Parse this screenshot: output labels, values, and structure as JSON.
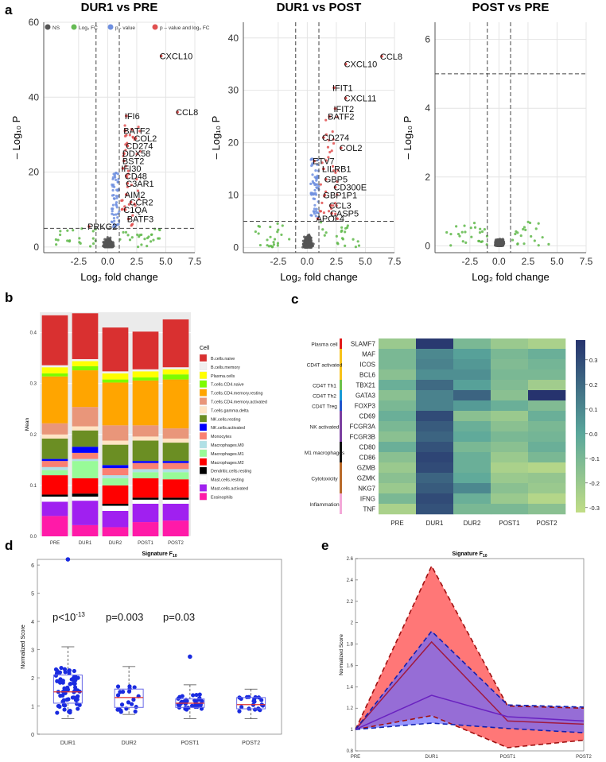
{
  "panels": {
    "a": "a",
    "b": "b",
    "c": "c",
    "d": "d",
    "e": "e"
  },
  "chart_data": [
    {
      "id": "a1",
      "type": "scatter",
      "title": "DUR1 vs PRE",
      "xlabel": "Log₂ fold change",
      "ylabel": "– Log₁₀ P",
      "xlim": [
        -5.5,
        7.5
      ],
      "ylim": [
        -1.5,
        60
      ],
      "xticks": [
        "-2.5",
        "0.0",
        "2.5",
        "5.0",
        "7.5"
      ],
      "xtick_values": [
        -2.5,
        0,
        2.5,
        5,
        7.5
      ],
      "yticks": [
        "0",
        "20",
        "40",
        "60"
      ],
      "ytick_values": [
        0,
        20,
        40,
        60
      ],
      "legend": [
        {
          "label": "NS",
          "color": "#555555"
        },
        {
          "label": "Log₂ FC",
          "color": "#66bb55"
        },
        {
          "label": "p - value",
          "color": "#6f8fdf"
        },
        {
          "label": "p – value and log₂ FC",
          "color": "#e05050"
        }
      ],
      "thresholds": {
        "fc": 1,
        "p": 5
      },
      "labels": [
        {
          "text": "CXCL10",
          "x": 4.6,
          "y": 51
        },
        {
          "text": "CCL8",
          "x": 6.0,
          "y": 36
        },
        {
          "text": "IFI6",
          "x": 1.6,
          "y": 35
        },
        {
          "text": "BATF2",
          "x": 1.5,
          "y": 31
        },
        {
          "text": "COL2",
          "x": 2.4,
          "y": 29
        },
        {
          "text": "CD274",
          "x": 1.7,
          "y": 27
        },
        {
          "text": "DDX58",
          "x": 1.4,
          "y": 25
        },
        {
          "text": "BST2",
          "x": 1.4,
          "y": 23
        },
        {
          "text": "IFI30",
          "x": 1.3,
          "y": 21
        },
        {
          "text": "CD48",
          "x": 1.6,
          "y": 19
        },
        {
          "text": "C3AR1",
          "x": 1.7,
          "y": 17
        },
        {
          "text": "AIM2",
          "x": 1.6,
          "y": 14
        },
        {
          "text": "CCR2",
          "x": 2.0,
          "y": 12
        },
        {
          "text": "C1QA",
          "x": 1.5,
          "y": 10
        },
        {
          "text": "BATF3",
          "x": 1.8,
          "y": 7.5
        },
        {
          "text": "PRKG2",
          "x": -1.6,
          "y": 5.5
        }
      ]
    },
    {
      "id": "a2",
      "type": "scatter",
      "title": "DUR1 vs POST",
      "xlabel": "Log₂ fold change",
      "ylabel": "– Log₁₀ P",
      "xlim": [
        -5.5,
        7.5
      ],
      "ylim": [
        -1,
        43
      ],
      "xticks": [
        "-2.5",
        "0.0",
        "2.5",
        "5.0",
        "7.5"
      ],
      "xtick_values": [
        -2.5,
        0,
        2.5,
        5,
        7.5
      ],
      "yticks": [
        "0",
        "10",
        "20",
        "30",
        "40"
      ],
      "ytick_values": [
        0,
        10,
        20,
        30,
        40
      ],
      "thresholds": {
        "fc": 1,
        "p": 5
      },
      "labels": [
        {
          "text": "CCL8",
          "x": 6.4,
          "y": 36.5
        },
        {
          "text": "CXCL10",
          "x": 3.3,
          "y": 35
        },
        {
          "text": "IFIT1",
          "x": 2.3,
          "y": 30.5
        },
        {
          "text": "CXCL11",
          "x": 3.3,
          "y": 28.5
        },
        {
          "text": "IFIT2",
          "x": 2.4,
          "y": 26.5
        },
        {
          "text": "BATF2",
          "x": 1.9,
          "y": 25
        },
        {
          "text": "CD274",
          "x": 1.4,
          "y": 21
        },
        {
          "text": "COL2",
          "x": 2.9,
          "y": 19
        },
        {
          "text": "ETV7",
          "x": 0.6,
          "y": 16.5
        },
        {
          "text": "LILRB1",
          "x": 1.4,
          "y": 15
        },
        {
          "text": "GBP5",
          "x": 1.6,
          "y": 13
        },
        {
          "text": "CD300E",
          "x": 2.4,
          "y": 11.5
        },
        {
          "text": "GBP1P1",
          "x": 1.5,
          "y": 10
        },
        {
          "text": "CCL3",
          "x": 2.0,
          "y": 8
        },
        {
          "text": "CASP5",
          "x": 2.1,
          "y": 6.5
        },
        {
          "text": "APOL4",
          "x": 0.9,
          "y": 5.5
        }
      ]
    },
    {
      "id": "a3",
      "type": "scatter",
      "title": "POST vs PRE",
      "xlabel": "Log₂ fold change",
      "ylabel": "– Log₁₀ P",
      "xlim": [
        -5.5,
        7.5
      ],
      "ylim": [
        -0.2,
        6.5
      ],
      "xticks": [
        "-2.5",
        "0.0",
        "2.5",
        "5.0",
        "7.5"
      ],
      "xtick_values": [
        -2.5,
        0,
        2.5,
        5,
        7.5
      ],
      "yticks": [
        "0",
        "2",
        "4",
        "6"
      ],
      "ytick_values": [
        0,
        2,
        4,
        6
      ],
      "thresholds": {
        "fc": 1,
        "p": 5
      },
      "labels": []
    },
    {
      "id": "b",
      "type": "bar",
      "stacked": true,
      "ylabel": "Mean",
      "categories": [
        "PRE",
        "DUR1",
        "DUR2",
        "POST1",
        "POST2"
      ],
      "ylim": [
        0,
        0.44
      ],
      "yticks": [
        "0.0",
        "0.1",
        "0.2",
        "0.3",
        "0.4"
      ],
      "ytick_values": [
        0,
        0.1,
        0.2,
        0.3,
        0.4
      ],
      "legend_title": "Cell",
      "series": [
        {
          "name": "Eosinophils",
          "color": "#ff1aa8",
          "values": [
            0.04,
            0.022,
            0.018,
            0.028,
            0.031
          ]
        },
        {
          "name": "Mast.cells.activated",
          "color": "#a020f0",
          "values": [
            0.028,
            0.048,
            0.032,
            0.036,
            0.033
          ]
        },
        {
          "name": "Mast.cells.resting",
          "color": "#ffffff",
          "values": [
            0.01,
            0.008,
            0.01,
            0.008,
            0.008
          ]
        },
        {
          "name": "Dendritic.cells.resting",
          "color": "#000000",
          "values": [
            0.004,
            0.006,
            0.004,
            0.004,
            0.004
          ]
        },
        {
          "name": "Macrophages.M2",
          "color": "#ff0000",
          "values": [
            0.038,
            0.03,
            0.036,
            0.038,
            0.036
          ]
        },
        {
          "name": "Macrophages.M1",
          "color": "#98fb98",
          "values": [
            0.01,
            0.034,
            0.014,
            0.012,
            0.014
          ]
        },
        {
          "name": "Macrophages.M0",
          "color": "#b0e0e6",
          "values": [
            0.006,
            0.004,
            0.006,
            0.006,
            0.006
          ]
        },
        {
          "name": "Monocytes",
          "color": "#fa8072",
          "values": [
            0.012,
            0.012,
            0.014,
            0.012,
            0.012
          ]
        },
        {
          "name": "NK.cells.activated",
          "color": "#0000ff",
          "values": [
            0.004,
            0.012,
            0.006,
            0.004,
            0.004
          ]
        },
        {
          "name": "NK.cells.resting",
          "color": "#6b8e23",
          "values": [
            0.04,
            0.032,
            0.04,
            0.04,
            0.036
          ]
        },
        {
          "name": "T.cells.gamma.delta",
          "color": "#ffe4c4",
          "values": [
            0.008,
            0.008,
            0.008,
            0.008,
            0.008
          ]
        },
        {
          "name": "T.cells.CD4.memory.activated",
          "color": "#e9967a",
          "values": [
            0.022,
            0.038,
            0.03,
            0.022,
            0.02
          ]
        },
        {
          "name": "T.cells.CD4.memory.resting",
          "color": "#ffa500",
          "values": [
            0.092,
            0.072,
            0.084,
            0.088,
            0.096
          ]
        },
        {
          "name": "T.cells.CD4.naive",
          "color": "#7cfc00",
          "values": [
            0.006,
            0.008,
            0.006,
            0.006,
            0.01
          ]
        },
        {
          "name": "Plasma.cells",
          "color": "#ffff00",
          "values": [
            0.012,
            0.01,
            0.012,
            0.012,
            0.01
          ]
        },
        {
          "name": "B.cells.memory",
          "color": "#f0f0f0",
          "values": [
            0.004,
            0.004,
            0.004,
            0.004,
            0.004
          ]
        },
        {
          "name": "B.cells.naive",
          "color": "#d93030",
          "values": [
            0.098,
            0.09,
            0.086,
            0.074,
            0.094
          ]
        }
      ]
    },
    {
      "id": "c",
      "type": "heatmap",
      "columns": [
        "PRE",
        "DUR1",
        "DUR2",
        "POST1",
        "POST2"
      ],
      "rows": [
        "SLAMF7",
        "MAF",
        "ICOS",
        "BCL6",
        "TBX21",
        "GATA3",
        "FOXP3",
        "CD69",
        "FCGR3A",
        "FCGR3B",
        "CD80",
        "CD86",
        "GZMB",
        "GZMK",
        "NKG7",
        "IFNG",
        "TNF"
      ],
      "groups": [
        {
          "label": "Plasma cell",
          "color": "#e21a1a",
          "rows": [
            0,
            0
          ]
        },
        {
          "label": "CD4T activated",
          "color": "#f7c21a",
          "rows": [
            1,
            3
          ]
        },
        {
          "label": "CD4T Th1",
          "color": "#6cc04a",
          "rows": [
            4,
            4
          ]
        },
        {
          "label": "CD4T Th2",
          "color": "#1a9ad6",
          "rows": [
            5,
            5
          ]
        },
        {
          "label": "CD4T Treg",
          "color": "#2255cc",
          "rows": [
            6,
            6
          ]
        },
        {
          "label": "NK activated",
          "color": "#7b3fa0",
          "rows": [
            7,
            9
          ]
        },
        {
          "label": "M1 macrophages",
          "color": "#111111",
          "rows": [
            10,
            11
          ]
        },
        {
          "label": "Cytotoxicity",
          "color": "#b86a2a",
          "rows": [
            12,
            14
          ]
        },
        {
          "label": "Inflammation",
          "color": "#f3a8d8",
          "rows": [
            15,
            16
          ]
        }
      ],
      "values": [
        [
          -0.2,
          0.36,
          -0.1,
          -0.2,
          -0.25
        ],
        [
          -0.1,
          0.1,
          0.02,
          -0.1,
          -0.05
        ],
        [
          -0.1,
          0.12,
          0.05,
          -0.12,
          -0.08
        ],
        [
          -0.15,
          0.08,
          0.08,
          -0.1,
          -0.1
        ],
        [
          -0.05,
          0.2,
          0.02,
          -0.12,
          -0.22
        ],
        [
          -0.15,
          0.12,
          0.22,
          -0.15,
          0.38
        ],
        [
          -0.1,
          0.12,
          0.04,
          -0.05,
          -0.12
        ],
        [
          -0.05,
          0.3,
          -0.15,
          -0.2,
          -0.05
        ],
        [
          -0.1,
          0.25,
          -0.05,
          -0.15,
          -0.1
        ],
        [
          -0.15,
          0.22,
          -0.02,
          -0.1,
          -0.08
        ],
        [
          -0.05,
          0.28,
          -0.1,
          -0.15,
          -0.05
        ],
        [
          -0.15,
          0.32,
          -0.05,
          -0.2,
          -0.1
        ],
        [
          -0.2,
          0.3,
          -0.05,
          -0.25,
          -0.28
        ],
        [
          -0.15,
          0.22,
          -0.02,
          -0.2,
          -0.18
        ],
        [
          -0.2,
          0.25,
          0.1,
          -0.15,
          -0.2
        ],
        [
          -0.1,
          0.3,
          -0.05,
          -0.2,
          -0.28
        ],
        [
          -0.25,
          0.28,
          -0.1,
          -0.1,
          -0.15
        ]
      ],
      "colorbar": {
        "min": -0.32,
        "max": 0.38,
        "ticks": [
          "-0.3",
          "-0.2",
          "-0.1",
          "0.0",
          "0.1",
          "0.2",
          "0.3"
        ],
        "tick_values": [
          -0.3,
          -0.2,
          -0.1,
          0,
          0.1,
          0.2,
          0.3
        ],
        "low_color": "#c1dd86",
        "mid_color": "#5aa79b",
        "high_color": "#26336e"
      }
    },
    {
      "id": "d",
      "type": "box",
      "title": "Signature F",
      "title_sub": "10",
      "ylabel": "Normalized Score",
      "categories": [
        "DUR1",
        "DUR2",
        "POST1",
        "POST2"
      ],
      "ylim": [
        0,
        6.2
      ],
      "yticks": [
        "0",
        "1",
        "2",
        "3",
        "4",
        "5",
        "6"
      ],
      "ytick_values": [
        0,
        1,
        2,
        3,
        4,
        5,
        6
      ],
      "annotations": [
        "p<10",
        "p=0.003",
        "p=0.03"
      ],
      "annotation_exp": "-13",
      "boxes": [
        {
          "q1": 1.1,
          "median": 1.5,
          "q3": 2.1,
          "whisker_low": 0.55,
          "whisker_high": 3.1,
          "outliers": [
            6.2
          ],
          "n": 70
        },
        {
          "q1": 0.95,
          "median": 1.3,
          "q3": 1.6,
          "whisker_low": 0.7,
          "whisker_high": 2.4,
          "outliers": [],
          "n": 20
        },
        {
          "q1": 0.95,
          "median": 1.1,
          "q3": 1.25,
          "whisker_low": 0.55,
          "whisker_high": 1.75,
          "outliers": [
            2.75
          ],
          "n": 35
        },
        {
          "q1": 0.9,
          "median": 1.05,
          "q3": 1.3,
          "whisker_low": 0.55,
          "whisker_high": 1.6,
          "outliers": [],
          "n": 20
        }
      ]
    },
    {
      "id": "e",
      "type": "line",
      "title": "Signature F",
      "title_sub": "10",
      "ylabel": "Normalized Score",
      "categories": [
        "PRE",
        "DUR1",
        "POST1",
        "POST2"
      ],
      "ylim": [
        0.8,
        2.6
      ],
      "yticks": [
        "0.8",
        "1",
        "1.2",
        "1.4",
        "1.6",
        "1.8",
        "2",
        "2.2",
        "2.4",
        "2.6"
      ],
      "ytick_values": [
        0.8,
        1,
        1.2,
        1.4,
        1.6,
        1.8,
        2,
        2.2,
        2.4,
        2.6
      ],
      "series": [
        {
          "name": "red",
          "color": "#ff5a5a",
          "fill": "#ff7070",
          "line": "#a01a40",
          "mean": [
            1.0,
            1.82,
            1.08,
            1.05
          ],
          "upper": [
            1.0,
            2.53,
            1.22,
            1.2
          ],
          "lower": [
            1.0,
            1.13,
            0.83,
            0.9
          ]
        },
        {
          "name": "blue",
          "color": "#4a4aff",
          "fill": "#6a6aff",
          "line": "#6a22c0",
          "mean": [
            1.0,
            1.32,
            1.12,
            1.08
          ],
          "upper": [
            1.0,
            1.92,
            1.23,
            1.21
          ],
          "lower": [
            1.0,
            1.06,
            1.01,
            0.97
          ]
        }
      ]
    }
  ]
}
